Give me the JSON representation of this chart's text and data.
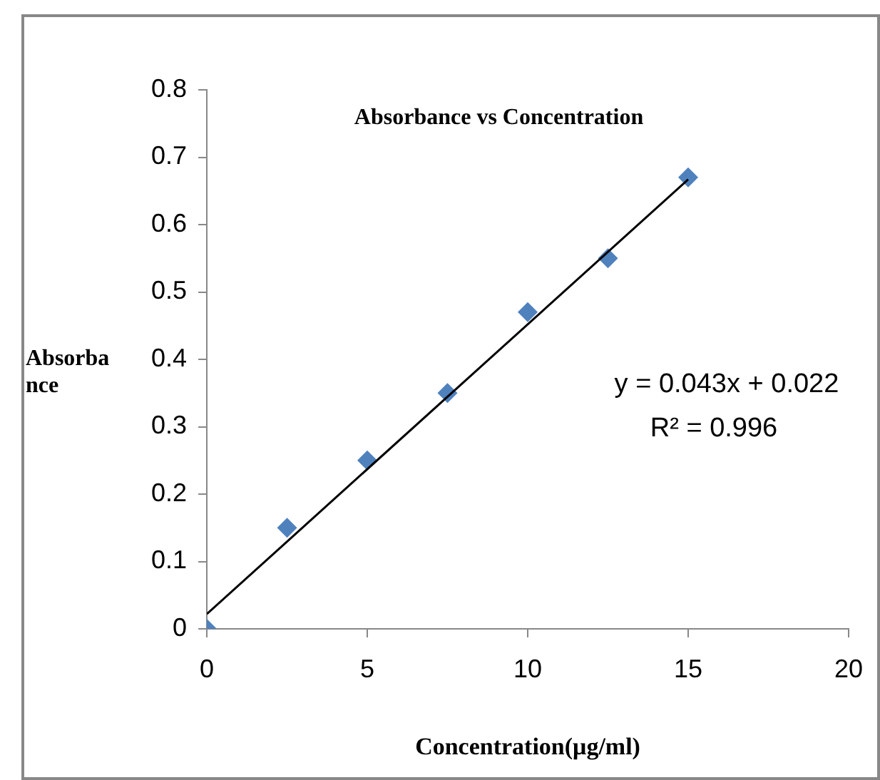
{
  "chart_data": {
    "type": "scatter",
    "title": "Absorbance vs Concentration",
    "xlabel": "Concentration(μg/ml)",
    "ylabel": "Absorbance",
    "x": [
      0,
      2.5,
      5,
      7.5,
      10,
      12.5,
      15
    ],
    "series": [
      {
        "color": "#4f81bd",
        "values": [
          0,
          0.15,
          0.25,
          0.35,
          0.47,
          0.55,
          0.67
        ],
        "marker": "diamond"
      },
      {
        "type": "line",
        "color": "#000000",
        "x": [
          0,
          15
        ],
        "values": [
          0.022,
          0.667
        ],
        "marker": "none",
        "line_style": "solid"
      }
    ],
    "annotations": [
      "y = 0.043x + 0.022",
      "R² = 0.996"
    ],
    "xlim": [
      0,
      20
    ],
    "xticks": [
      0,
      5,
      10,
      15,
      20
    ],
    "ylim": [
      0,
      0.8
    ],
    "yticks": [
      0,
      0.1,
      0.2,
      0.3,
      0.4,
      0.5,
      0.6,
      0.7,
      0.8
    ],
    "grid": false,
    "legend": false
  }
}
